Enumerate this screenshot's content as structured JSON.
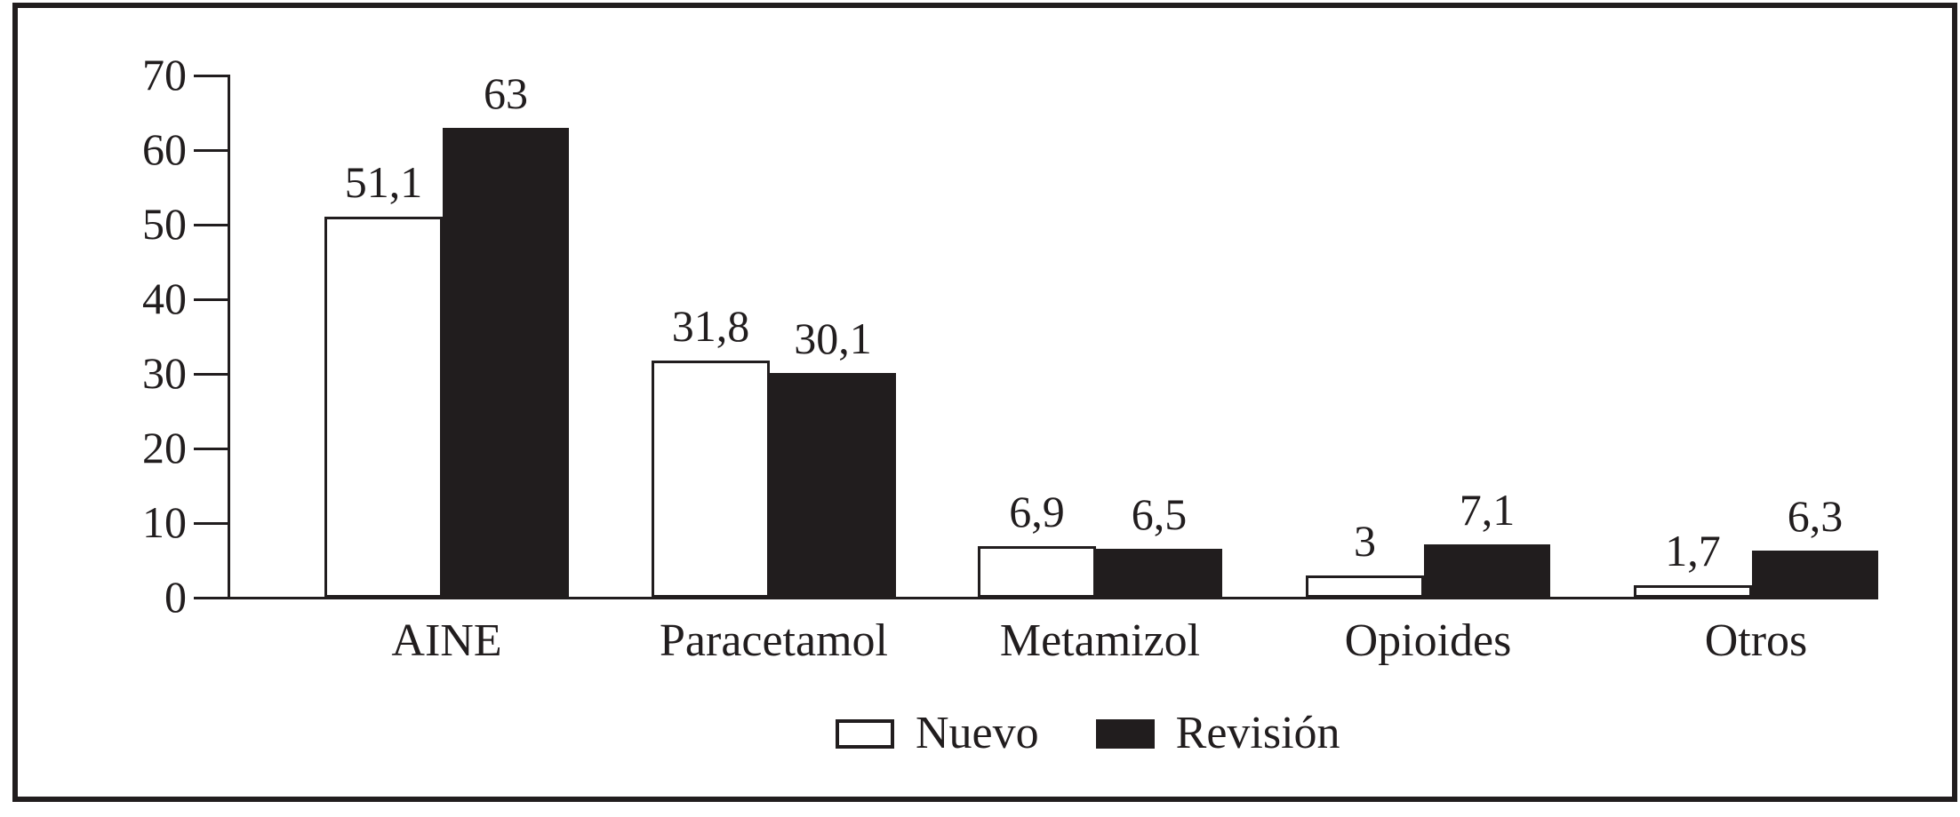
{
  "figure": {
    "background": "#ffffff",
    "ink_color": "#211d1e"
  },
  "chart_data": {
    "type": "bar",
    "title": "",
    "xlabel": "",
    "ylabel": "",
    "categories": [
      "AINE",
      "Paracetamol",
      "Metamizol",
      "Opioides",
      "Otros"
    ],
    "series": [
      {
        "name": "Nuevo",
        "swatch": "white",
        "color": "#ffffff",
        "values": [
          51.1,
          31.8,
          6.9,
          3,
          1.7
        ],
        "labels": [
          "51,1",
          "31,8",
          "6,9",
          "3",
          "1,7"
        ]
      },
      {
        "name": "Revisión",
        "swatch": "black",
        "color": "#211d1e",
        "values": [
          63,
          30.1,
          6.5,
          7.1,
          6.3
        ],
        "labels": [
          "63",
          "30,1",
          "6,5",
          "7,1",
          "6,3"
        ]
      }
    ],
    "ylim": [
      0,
      70
    ],
    "yticks": [
      0,
      10,
      20,
      30,
      40,
      50,
      60,
      70
    ],
    "ytick_labels": [
      "0",
      "10",
      "20",
      "30",
      "40",
      "50",
      "60",
      "70"
    ],
    "grid": false,
    "value_labels_shown": true,
    "legend_position": "bottom-center"
  },
  "legend": {
    "items": [
      {
        "label": "Nuevo",
        "swatch": "white"
      },
      {
        "label": "Revisión",
        "swatch": "black"
      }
    ]
  }
}
